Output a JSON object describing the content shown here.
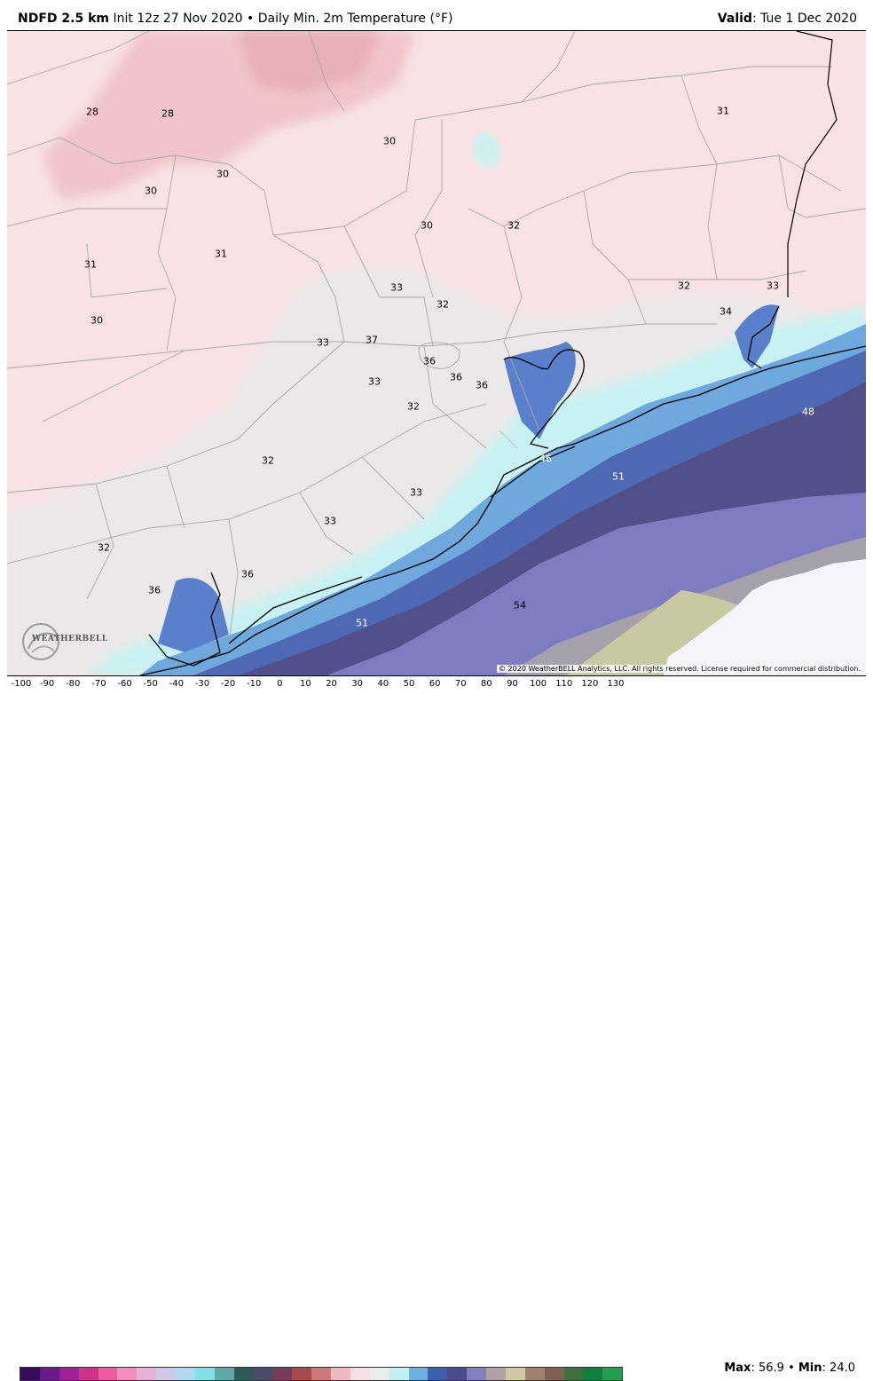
{
  "header": {
    "model": "NDFD 2.5 km",
    "init": "Init 12z 27 Nov 2020",
    "bullet": "•",
    "field": "Daily Min. 2m Temperature (°F)",
    "valid_label": "Valid",
    "valid_value": ": Tue 1 Dec 2020"
  },
  "map": {
    "labels": [
      {
        "text": "28",
        "light": false
      },
      {
        "text": "28",
        "light": false
      },
      {
        "text": "30",
        "light": false
      },
      {
        "text": "30",
        "light": false
      },
      {
        "text": "30",
        "light": false
      },
      {
        "text": "31",
        "light": false
      },
      {
        "text": "31",
        "light": false
      },
      {
        "text": "31",
        "light": false
      },
      {
        "text": "30",
        "light": false
      },
      {
        "text": "30",
        "light": false
      },
      {
        "text": "32",
        "light": false
      },
      {
        "text": "33",
        "light": false
      },
      {
        "text": "32",
        "light": false
      },
      {
        "text": "33",
        "light": false
      },
      {
        "text": "37",
        "light": false
      },
      {
        "text": "36",
        "light": false
      },
      {
        "text": "36",
        "light": false
      },
      {
        "text": "33",
        "light": false
      },
      {
        "text": "32",
        "light": false
      },
      {
        "text": "36",
        "light": false
      },
      {
        "text": "32",
        "light": false
      },
      {
        "text": "33",
        "light": false
      },
      {
        "text": "33",
        "light": false
      },
      {
        "text": "32",
        "light": false
      },
      {
        "text": "36",
        "light": false
      },
      {
        "text": "36",
        "light": false
      },
      {
        "text": "32",
        "light": false
      },
      {
        "text": "33",
        "light": false
      },
      {
        "text": "34",
        "light": false
      },
      {
        "text": "48",
        "light": true
      },
      {
        "text": "46",
        "light": true
      },
      {
        "text": "51",
        "light": true
      },
      {
        "text": "54",
        "light": false
      },
      {
        "text": "51",
        "light": true
      }
    ],
    "copyright": "© 2020 WeatherBELL Analytics, LLC. All rights reserved. License required for commercial distribution.",
    "logo_text": "WEATHERBELL"
  },
  "legend": {
    "ticks": [
      "-100",
      "-90",
      "-80",
      "-70",
      "-60",
      "-50",
      "-40",
      "-30",
      "-20",
      "-10",
      "0",
      "10",
      "20",
      "30",
      "40",
      "50",
      "60",
      "70",
      "80",
      "90",
      "100",
      "110",
      "120",
      "130"
    ],
    "colors": [
      "#3a0a5c",
      "#6a1a8a",
      "#a0209a",
      "#d0308a",
      "#ec5aa0",
      "#f48cc0",
      "#e8b0d8",
      "#d0c8e8",
      "#b0d8f0",
      "#80e0e8",
      "#60a8a8",
      "#2a5a5a",
      "#4a4a6a",
      "#7a3a5a",
      "#a84a4a",
      "#d07878",
      "#f0b8c0",
      "#f6e0e4",
      "#e8eef0",
      "#c0f0f0",
      "#6ab0e0",
      "#3a60b0",
      "#4a4a90",
      "#8080c0",
      "#b0a0a8",
      "#d0c8a0",
      "#a08070",
      "#806050",
      "#407040",
      "#108040",
      "#20a050"
    ],
    "max_label": "Max",
    "max_value": ": 56.9",
    "bullet": "•",
    "min_label": "Min",
    "min_value": ": 24.0"
  }
}
